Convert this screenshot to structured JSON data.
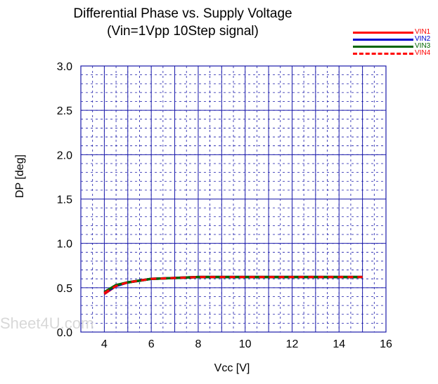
{
  "chart_data": {
    "type": "line",
    "title": "Differential Phase vs. Supply Voltage",
    "subtitle": "(Vin=1Vpp 10Step signal)",
    "xlabel": "Vcc [V]",
    "ylabel": "DP [deg]",
    "xlim": [
      3,
      16
    ],
    "ylim": [
      0.0,
      3.0
    ],
    "xticks": [
      4,
      6,
      8,
      10,
      12,
      14,
      16
    ],
    "xtick_labels": [
      "4",
      "6",
      "8",
      "10",
      "12",
      "14",
      "16"
    ],
    "yticks": [
      0.0,
      0.5,
      1.0,
      1.5,
      2.0,
      2.5,
      3.0
    ],
    "ytick_labels": [
      "0.0",
      "0.5",
      "1.0",
      "1.5",
      "2.0",
      "2.5",
      "3.0"
    ],
    "grid": true,
    "legend_position": "top-right",
    "series": [
      {
        "name": "VIN1",
        "color": "#ff0000",
        "style": "solid",
        "x": [
          4,
          4.5,
          5,
          5.5,
          6,
          7,
          8,
          9,
          10,
          11,
          12,
          13,
          14,
          15
        ],
        "y": [
          0.43,
          0.52,
          0.56,
          0.58,
          0.6,
          0.61,
          0.62,
          0.62,
          0.62,
          0.62,
          0.62,
          0.62,
          0.62,
          0.62
        ]
      },
      {
        "name": "VIN2",
        "color": "#0000cc",
        "style": "solid",
        "x": [
          4,
          4.5,
          5,
          5.5,
          6,
          7,
          8,
          9,
          10,
          11,
          12,
          13,
          14,
          15
        ],
        "y": [
          0.44,
          0.52,
          0.56,
          0.58,
          0.6,
          0.61,
          0.62,
          0.62,
          0.62,
          0.62,
          0.62,
          0.62,
          0.62,
          0.62
        ]
      },
      {
        "name": "VIN3",
        "color": "#006600",
        "style": "solid",
        "x": [
          4,
          4.5,
          5,
          5.5,
          6,
          7,
          8,
          9,
          10,
          11,
          12,
          13,
          14,
          15
        ],
        "y": [
          0.45,
          0.53,
          0.56,
          0.58,
          0.6,
          0.61,
          0.62,
          0.62,
          0.62,
          0.62,
          0.62,
          0.62,
          0.62,
          0.62
        ]
      },
      {
        "name": "VIN4",
        "color": "#ff0000",
        "style": "dashed",
        "x": [
          4,
          4.5,
          5,
          5.5,
          6,
          7,
          8,
          9,
          10,
          11,
          12,
          13,
          14,
          15
        ],
        "y": [
          0.44,
          0.52,
          0.56,
          0.58,
          0.6,
          0.61,
          0.62,
          0.62,
          0.62,
          0.62,
          0.62,
          0.62,
          0.62,
          0.62
        ]
      }
    ]
  },
  "watermark": "Sheet4U.com"
}
